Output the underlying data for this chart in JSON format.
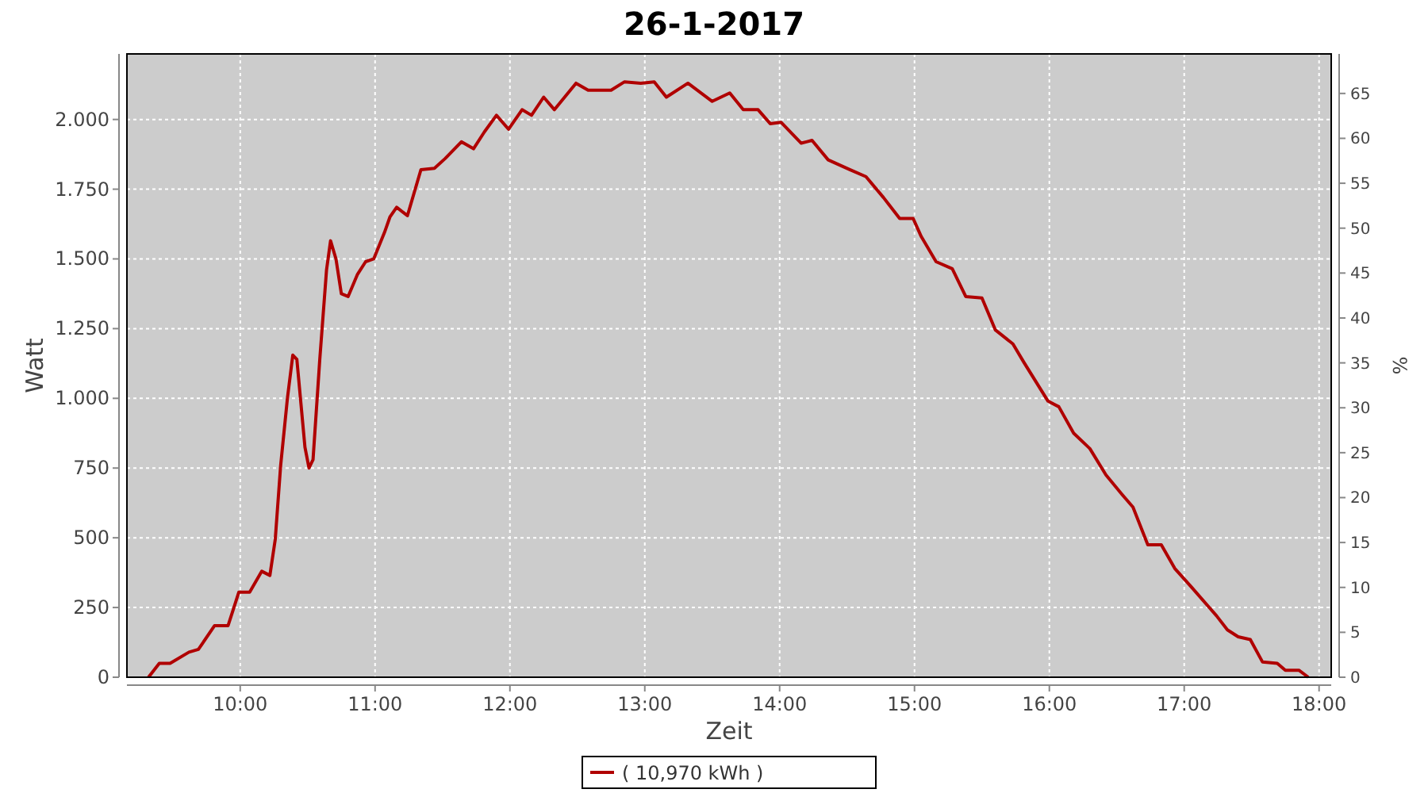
{
  "chart_data": {
    "type": "line",
    "title": "26-1-2017",
    "xlabel": "Zeit",
    "ylabel": "Watt",
    "y2label": "%",
    "x": [
      9.32,
      9.4,
      9.48,
      9.62,
      9.69,
      9.81,
      9.91,
      9.99,
      10.07,
      10.16,
      10.22,
      10.26,
      10.3,
      10.35,
      10.39,
      10.42,
      10.48,
      10.51,
      10.54,
      10.59,
      10.64,
      10.67,
      10.71,
      10.75,
      10.8,
      10.87,
      10.93,
      10.99,
      11.07,
      11.11,
      11.16,
      11.24,
      11.34,
      11.44,
      11.52,
      11.64,
      11.73,
      11.81,
      11.9,
      11.99,
      12.09,
      12.16,
      12.25,
      12.33,
      12.49,
      12.58,
      12.75,
      12.85,
      12.97,
      13.07,
      13.16,
      13.32,
      13.5,
      13.63,
      13.73,
      13.84,
      13.93,
      14.01,
      14.16,
      14.24,
      14.36,
      14.52,
      14.64,
      14.77,
      14.89,
      14.99,
      15.05,
      15.16,
      15.28,
      15.38,
      15.5,
      15.6,
      15.73,
      15.81,
      15.99,
      16.07,
      16.18,
      16.3,
      16.42,
      16.54,
      16.62,
      16.73,
      16.83,
      16.93,
      17.05,
      17.24,
      17.32,
      17.4,
      17.49,
      17.58,
      17.69,
      17.75,
      17.85,
      17.92
    ],
    "series": [
      {
        "name": "( 10,970 kWh )",
        "color": "#b00000",
        "values": [
          0,
          50,
          50,
          90,
          100,
          185,
          185,
          305,
          305,
          380,
          365,
          495,
          760,
          1000,
          1155,
          1140,
          825,
          750,
          780,
          1140,
          1460,
          1565,
          1500,
          1375,
          1365,
          1445,
          1490,
          1500,
          1595,
          1650,
          1685,
          1655,
          1820,
          1825,
          1860,
          1920,
          1895,
          1955,
          2015,
          1965,
          2035,
          2015,
          2080,
          2035,
          2130,
          2105,
          2105,
          2135,
          2130,
          2135,
          2080,
          2130,
          2065,
          2095,
          2035,
          2035,
          1985,
          1990,
          1915,
          1925,
          1855,
          1820,
          1795,
          1720,
          1645,
          1645,
          1580,
          1490,
          1465,
          1365,
          1360,
          1245,
          1195,
          1130,
          990,
          970,
          875,
          820,
          725,
          655,
          610,
          475,
          475,
          390,
          325,
          220,
          170,
          145,
          135,
          55,
          50,
          25,
          25,
          0
        ]
      }
    ],
    "xlim": [
      9.16,
      18.09
    ],
    "xticks": [
      {
        "value": 10,
        "label": "10:00"
      },
      {
        "value": 11,
        "label": "11:00"
      },
      {
        "value": 12,
        "label": "12:00"
      },
      {
        "value": 13,
        "label": "13:00"
      },
      {
        "value": 14,
        "label": "14:00"
      },
      {
        "value": 15,
        "label": "15:00"
      },
      {
        "value": 16,
        "label": "16:00"
      },
      {
        "value": 17,
        "label": "17:00"
      },
      {
        "value": 18,
        "label": "18:00"
      }
    ],
    "ylim": [
      0,
      2235
    ],
    "yticks": [
      0,
      250,
      500,
      750,
      {
        "value": 1000,
        "label": "1.000"
      },
      {
        "value": 1250,
        "label": "1.250"
      },
      {
        "value": 1500,
        "label": "1.500"
      },
      {
        "value": 1750,
        "label": "1.750"
      },
      {
        "value": 2000,
        "label": "2.000"
      }
    ],
    "y2lim": [
      0,
      69.4
    ],
    "y2ticks": [
      0,
      5,
      10,
      15,
      20,
      25,
      30,
      35,
      40,
      45,
      50,
      55,
      60,
      65
    ],
    "grid": true,
    "legend": "bottom",
    "line_style": "solid",
    "marker": "none"
  }
}
